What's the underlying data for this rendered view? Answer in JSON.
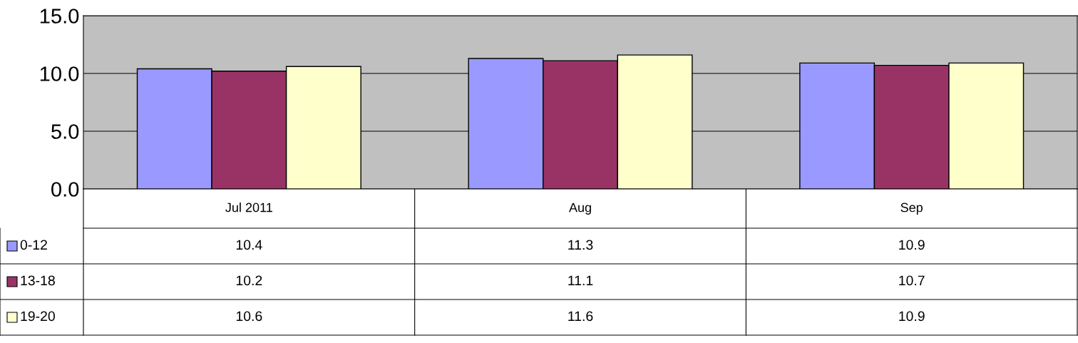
{
  "chart_data": {
    "type": "bar",
    "categories": [
      "Jul 2011",
      "Aug",
      "Sep"
    ],
    "series": [
      {
        "name": "0-12",
        "color": "#9999ff",
        "values": [
          10.4,
          11.3,
          10.9
        ]
      },
      {
        "name": "13-18",
        "color": "#993366",
        "values": [
          10.2,
          11.1,
          10.7
        ]
      },
      {
        "name": "19-20",
        "color": "#ffffcc",
        "values": [
          10.6,
          11.6,
          10.9
        ]
      }
    ],
    "ylim": [
      0,
      15
    ],
    "yticks": [
      {
        "value": 0,
        "label": "0.0"
      },
      {
        "value": 5,
        "label": "5.0"
      },
      {
        "value": 10,
        "label": "10.0"
      },
      {
        "value": 15,
        "label": "15.0"
      }
    ],
    "grid": "y",
    "legend": "left",
    "data_labels": true
  }
}
